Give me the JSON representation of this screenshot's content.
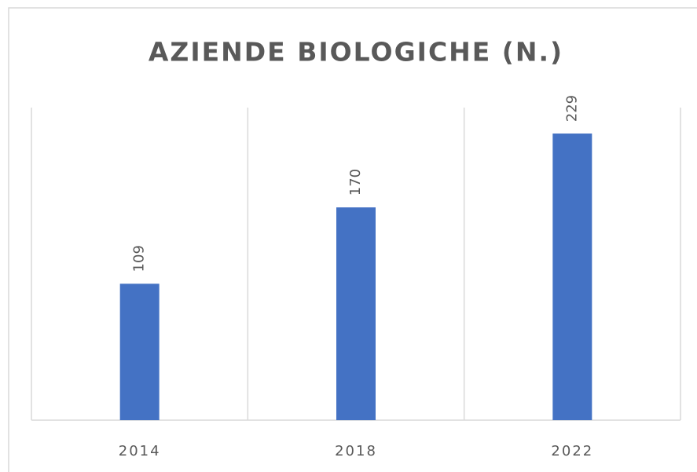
{
  "chart_data": {
    "type": "bar",
    "title": "AZIENDE BIOLOGICHE (N.)",
    "categories": [
      "2014",
      "2018",
      "2022"
    ],
    "values": [
      109,
      170,
      229
    ],
    "color": "#4472c4"
  }
}
